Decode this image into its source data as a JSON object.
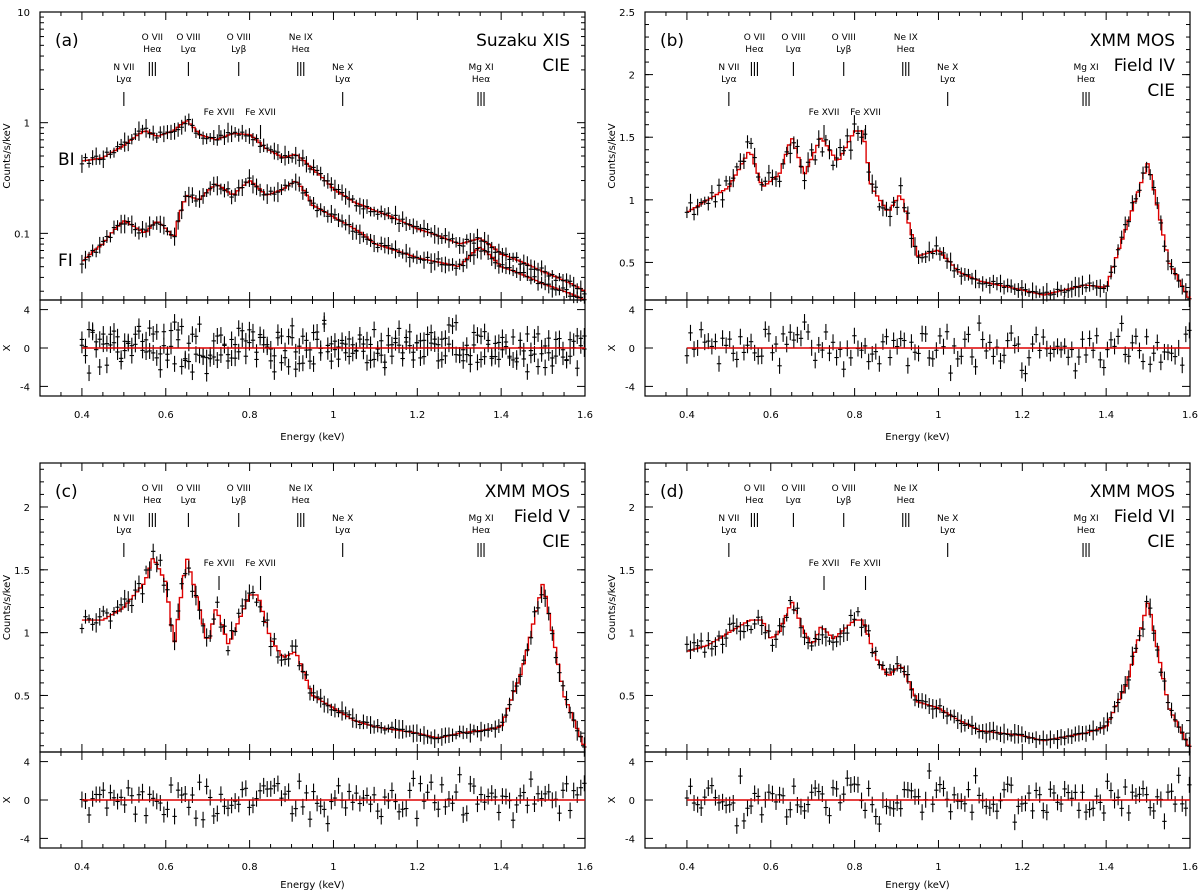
{
  "chart_data": [
    {
      "type": "line",
      "panel": "(a)",
      "instrument": [
        "Suzaku XIS",
        "CIE"
      ],
      "xlabel": "Energy (keV)",
      "ylabel": "Counts/s/keV",
      "residual_ylabel": "X",
      "xlim": [
        0.3,
        1.6
      ],
      "ylim": [
        0.025,
        10
      ],
      "yscale": "log",
      "residual_ylim": [
        -5,
        5
      ],
      "xticks": [
        "0.4",
        "0.6",
        "0.8",
        "1",
        "1.2",
        "1.4",
        "1.6"
      ],
      "yticks": [
        {
          "v": 0.1,
          "label": "0.1"
        },
        {
          "v": 1,
          "label": "1"
        },
        {
          "v": 10,
          "label": "10"
        }
      ],
      "residual_yticks": [
        {
          "v": -4,
          "label": "-4"
        },
        {
          "v": 0,
          "label": "0"
        },
        {
          "v": 4,
          "label": "4"
        }
      ],
      "series": [
        {
          "name": "BI",
          "x": [
            0.4,
            0.45,
            0.5,
            0.55,
            0.58,
            0.62,
            0.65,
            0.68,
            0.72,
            0.76,
            0.8,
            0.84,
            0.88,
            0.91,
            0.95,
            1.0,
            1.05,
            1.1,
            1.2,
            1.3,
            1.35,
            1.4,
            1.5,
            1.6
          ],
          "y": [
            0.45,
            0.48,
            0.62,
            0.85,
            0.75,
            0.85,
            1.05,
            0.78,
            0.7,
            0.8,
            0.78,
            0.58,
            0.48,
            0.52,
            0.38,
            0.25,
            0.19,
            0.16,
            0.11,
            0.08,
            0.09,
            0.065,
            0.045,
            0.03
          ]
        },
        {
          "name": "FI",
          "x": [
            0.4,
            0.45,
            0.5,
            0.55,
            0.58,
            0.62,
            0.65,
            0.68,
            0.72,
            0.76,
            0.8,
            0.84,
            0.88,
            0.91,
            0.95,
            1.0,
            1.05,
            1.1,
            1.2,
            1.3,
            1.35,
            1.4,
            1.5,
            1.6
          ],
          "y": [
            0.055,
            0.08,
            0.13,
            0.1,
            0.13,
            0.09,
            0.22,
            0.2,
            0.28,
            0.22,
            0.3,
            0.22,
            0.25,
            0.3,
            0.18,
            0.14,
            0.11,
            0.08,
            0.06,
            0.05,
            0.075,
            0.05,
            0.035,
            0.025
          ]
        }
      ],
      "line_labels": [
        {
          "text": [
            "N VII",
            "Lyα"
          ],
          "x": 0.5,
          "marks": 1,
          "row": 2
        },
        {
          "text": [
            "O VII",
            "Heα"
          ],
          "x": 0.568,
          "marks": 3,
          "row": 1
        },
        {
          "text": [
            "O VIII",
            "Lyα"
          ],
          "x": 0.654,
          "marks": 1,
          "row": 1
        },
        {
          "text": [
            "Fe XVII"
          ],
          "x": 0.727,
          "marks": 1,
          "row": 3
        },
        {
          "text": [
            "O VIII",
            "Lyβ"
          ],
          "x": 0.774,
          "marks": 1,
          "row": 1
        },
        {
          "text": [
            "Fe XVII"
          ],
          "x": 0.826,
          "marks": 1,
          "row": 3
        },
        {
          "text": [
            "Ne IX",
            "Heα"
          ],
          "x": 0.922,
          "marks": 3,
          "row": 1
        },
        {
          "text": [
            "Ne X",
            "Lyα"
          ],
          "x": 1.022,
          "marks": 1,
          "row": 2
        },
        {
          "text": [
            "Mg XI",
            "Heα"
          ],
          "x": 1.352,
          "marks": 3,
          "row": 2
        }
      ]
    },
    {
      "type": "line",
      "panel": "(b)",
      "instrument": [
        "XMM MOS",
        "Field IV",
        "CIE"
      ],
      "xlabel": "Energy (keV)",
      "ylabel": "Counts/s/keV",
      "residual_ylabel": "X",
      "xlim": [
        0.3,
        1.6
      ],
      "ylim": [
        0.2,
        2.5
      ],
      "yscale": "linear",
      "residual_ylim": [
        -5,
        5
      ],
      "xticks": [
        "0.4",
        "0.6",
        "0.8",
        "1",
        "1.2",
        "1.4",
        "1.6"
      ],
      "yticks": [
        {
          "v": 0.5,
          "label": "0.5"
        },
        {
          "v": 1,
          "label": "1"
        },
        {
          "v": 1.5,
          "label": "1.5"
        },
        {
          "v": 2,
          "label": "2"
        },
        {
          "v": 2.5,
          "label": "2.5"
        }
      ],
      "residual_yticks": [
        {
          "v": -4,
          "label": "-4"
        },
        {
          "v": 0,
          "label": "0"
        },
        {
          "v": 4,
          "label": "4"
        }
      ],
      "series": [
        {
          "name": "",
          "x": [
            0.4,
            0.45,
            0.5,
            0.55,
            0.58,
            0.62,
            0.65,
            0.68,
            0.72,
            0.76,
            0.8,
            0.82,
            0.84,
            0.88,
            0.91,
            0.95,
            1.0,
            1.05,
            1.1,
            1.2,
            1.25,
            1.3,
            1.35,
            1.4,
            1.45,
            1.5,
            1.55,
            1.6
          ],
          "y": [
            0.9,
            1.0,
            1.1,
            1.4,
            1.1,
            1.2,
            1.5,
            1.2,
            1.5,
            1.3,
            1.55,
            1.55,
            1.1,
            0.9,
            1.05,
            0.55,
            0.6,
            0.42,
            0.35,
            0.28,
            0.24,
            0.28,
            0.32,
            0.3,
            0.8,
            1.3,
            0.5,
            0.2
          ]
        }
      ],
      "line_labels": [
        {
          "text": [
            "N VII",
            "Lyα"
          ],
          "x": 0.5,
          "marks": 1,
          "row": 2
        },
        {
          "text": [
            "O VII",
            "Heα"
          ],
          "x": 0.561,
          "marks": 3,
          "row": 1
        },
        {
          "text": [
            "O VIII",
            "Lyα"
          ],
          "x": 0.654,
          "marks": 1,
          "row": 1
        },
        {
          "text": [
            "Fe XVII"
          ],
          "x": 0.727,
          "marks": 1,
          "row": 3
        },
        {
          "text": [
            "O VIII",
            "Lyβ"
          ],
          "x": 0.774,
          "marks": 1,
          "row": 1
        },
        {
          "text": [
            "Fe XVII"
          ],
          "x": 0.826,
          "marks": 1,
          "row": 3
        },
        {
          "text": [
            "Ne IX",
            "Heα"
          ],
          "x": 0.922,
          "marks": 3,
          "row": 1
        },
        {
          "text": [
            "Ne X",
            "Lyα"
          ],
          "x": 1.022,
          "marks": 1,
          "row": 2
        },
        {
          "text": [
            "Mg XI",
            "Heα"
          ],
          "x": 1.352,
          "marks": 3,
          "row": 2
        }
      ]
    },
    {
      "type": "line",
      "panel": "(c)",
      "instrument": [
        "XMM MOS",
        "Field V",
        "CIE"
      ],
      "xlabel": "Energy (keV)",
      "ylabel": "Counts/s/keV",
      "residual_ylabel": "X",
      "xlim": [
        0.3,
        1.6
      ],
      "ylim": [
        0.05,
        2.35
      ],
      "yscale": "linear",
      "residual_ylim": [
        -5,
        5
      ],
      "xticks": [
        "0.4",
        "0.6",
        "0.8",
        "1",
        "1.2",
        "1.4",
        "1.6"
      ],
      "yticks": [
        {
          "v": 0.5,
          "label": "0.5"
        },
        {
          "v": 1,
          "label": "1"
        },
        {
          "v": 1.5,
          "label": "1.5"
        },
        {
          "v": 2,
          "label": "2"
        }
      ],
      "residual_yticks": [
        {
          "v": -4,
          "label": "-4"
        },
        {
          "v": 0,
          "label": "0"
        },
        {
          "v": 4,
          "label": "4"
        }
      ],
      "series": [
        {
          "name": "",
          "x": [
            0.4,
            0.45,
            0.5,
            0.55,
            0.57,
            0.6,
            0.62,
            0.65,
            0.68,
            0.7,
            0.72,
            0.75,
            0.8,
            0.82,
            0.85,
            0.88,
            0.91,
            0.95,
            1.0,
            1.05,
            1.1,
            1.2,
            1.25,
            1.3,
            1.35,
            1.4,
            1.45,
            1.5,
            1.55,
            1.6
          ],
          "y": [
            1.1,
            1.1,
            1.2,
            1.4,
            1.6,
            1.4,
            0.9,
            1.6,
            1.2,
            0.9,
            1.2,
            0.9,
            1.3,
            1.3,
            0.95,
            0.8,
            0.85,
            0.5,
            0.4,
            0.3,
            0.25,
            0.2,
            0.16,
            0.2,
            0.22,
            0.25,
            0.7,
            1.4,
            0.5,
            0.08
          ]
        }
      ],
      "line_labels": [
        {
          "text": [
            "N VII",
            "Lyα"
          ],
          "x": 0.5,
          "marks": 1,
          "row": 2
        },
        {
          "text": [
            "O VII",
            "Heα"
          ],
          "x": 0.568,
          "marks": 3,
          "row": 1
        },
        {
          "text": [
            "O VIII",
            "Lyα"
          ],
          "x": 0.654,
          "marks": 1,
          "row": 1
        },
        {
          "text": [
            "Fe XVII"
          ],
          "x": 0.727,
          "marks": 1,
          "row": 3
        },
        {
          "text": [
            "O VIII",
            "Lyβ"
          ],
          "x": 0.774,
          "marks": 1,
          "row": 1
        },
        {
          "text": [
            "Fe XVII"
          ],
          "x": 0.826,
          "marks": 1,
          "row": 3
        },
        {
          "text": [
            "Ne IX",
            "Heα"
          ],
          "x": 0.922,
          "marks": 3,
          "row": 1
        },
        {
          "text": [
            "Ne X",
            "Lyα"
          ],
          "x": 1.022,
          "marks": 1,
          "row": 2
        },
        {
          "text": [
            "Mg XI",
            "Heα"
          ],
          "x": 1.352,
          "marks": 3,
          "row": 2
        }
      ]
    },
    {
      "type": "line",
      "panel": "(d)",
      "instrument": [
        "XMM MOS",
        "Field VI",
        "CIE"
      ],
      "xlabel": "Energy (keV)",
      "ylabel": "Counts/s/keV",
      "residual_ylabel": "X",
      "xlim": [
        0.3,
        1.6
      ],
      "ylim": [
        0.05,
        2.35
      ],
      "yscale": "linear",
      "residual_ylim": [
        -5,
        5
      ],
      "xticks": [
        "0.4",
        "0.6",
        "0.8",
        "1",
        "1.2",
        "1.4",
        "1.6"
      ],
      "yticks": [
        {
          "v": 0.5,
          "label": "0.5"
        },
        {
          "v": 1,
          "label": "1"
        },
        {
          "v": 1.5,
          "label": "1.5"
        },
        {
          "v": 2,
          "label": "2"
        }
      ],
      "residual_yticks": [
        {
          "v": -4,
          "label": "-4"
        },
        {
          "v": 0,
          "label": "0"
        },
        {
          "v": 4,
          "label": "4"
        }
      ],
      "series": [
        {
          "name": "",
          "x": [
            0.4,
            0.45,
            0.5,
            0.55,
            0.58,
            0.6,
            0.62,
            0.65,
            0.68,
            0.7,
            0.72,
            0.75,
            0.8,
            0.82,
            0.85,
            0.88,
            0.91,
            0.95,
            1.0,
            1.05,
            1.1,
            1.2,
            1.25,
            1.3,
            1.35,
            1.4,
            1.45,
            1.5,
            1.55,
            1.6
          ],
          "y": [
            0.85,
            0.9,
            1.0,
            1.1,
            1.1,
            0.95,
            1.0,
            1.25,
            1.0,
            0.9,
            1.05,
            0.95,
            1.1,
            1.1,
            0.8,
            0.65,
            0.75,
            0.45,
            0.4,
            0.3,
            0.22,
            0.18,
            0.14,
            0.17,
            0.2,
            0.25,
            0.6,
            1.25,
            0.4,
            0.08
          ]
        }
      ],
      "line_labels": [
        {
          "text": [
            "N VII",
            "Lyα"
          ],
          "x": 0.5,
          "marks": 1,
          "row": 2
        },
        {
          "text": [
            "O VII",
            "Heα"
          ],
          "x": 0.561,
          "marks": 3,
          "row": 1
        },
        {
          "text": [
            "O VIII",
            "Lyα"
          ],
          "x": 0.654,
          "marks": 1,
          "row": 1
        },
        {
          "text": [
            "Fe XVII"
          ],
          "x": 0.727,
          "marks": 1,
          "row": 3
        },
        {
          "text": [
            "O VIII",
            "Lyβ"
          ],
          "x": 0.774,
          "marks": 1,
          "row": 1
        },
        {
          "text": [
            "Fe XVII"
          ],
          "x": 0.826,
          "marks": 1,
          "row": 3
        },
        {
          "text": [
            "Ne IX",
            "Heα"
          ],
          "x": 0.922,
          "marks": 3,
          "row": 1
        },
        {
          "text": [
            "Ne X",
            "Lyα"
          ],
          "x": 1.022,
          "marks": 1,
          "row": 2
        },
        {
          "text": [
            "Mg XI",
            "Heα"
          ],
          "x": 1.352,
          "marks": 3,
          "row": 2
        }
      ]
    }
  ],
  "colors": {
    "data": "#000000",
    "model": "#dd0000",
    "background": "#ffffff"
  }
}
